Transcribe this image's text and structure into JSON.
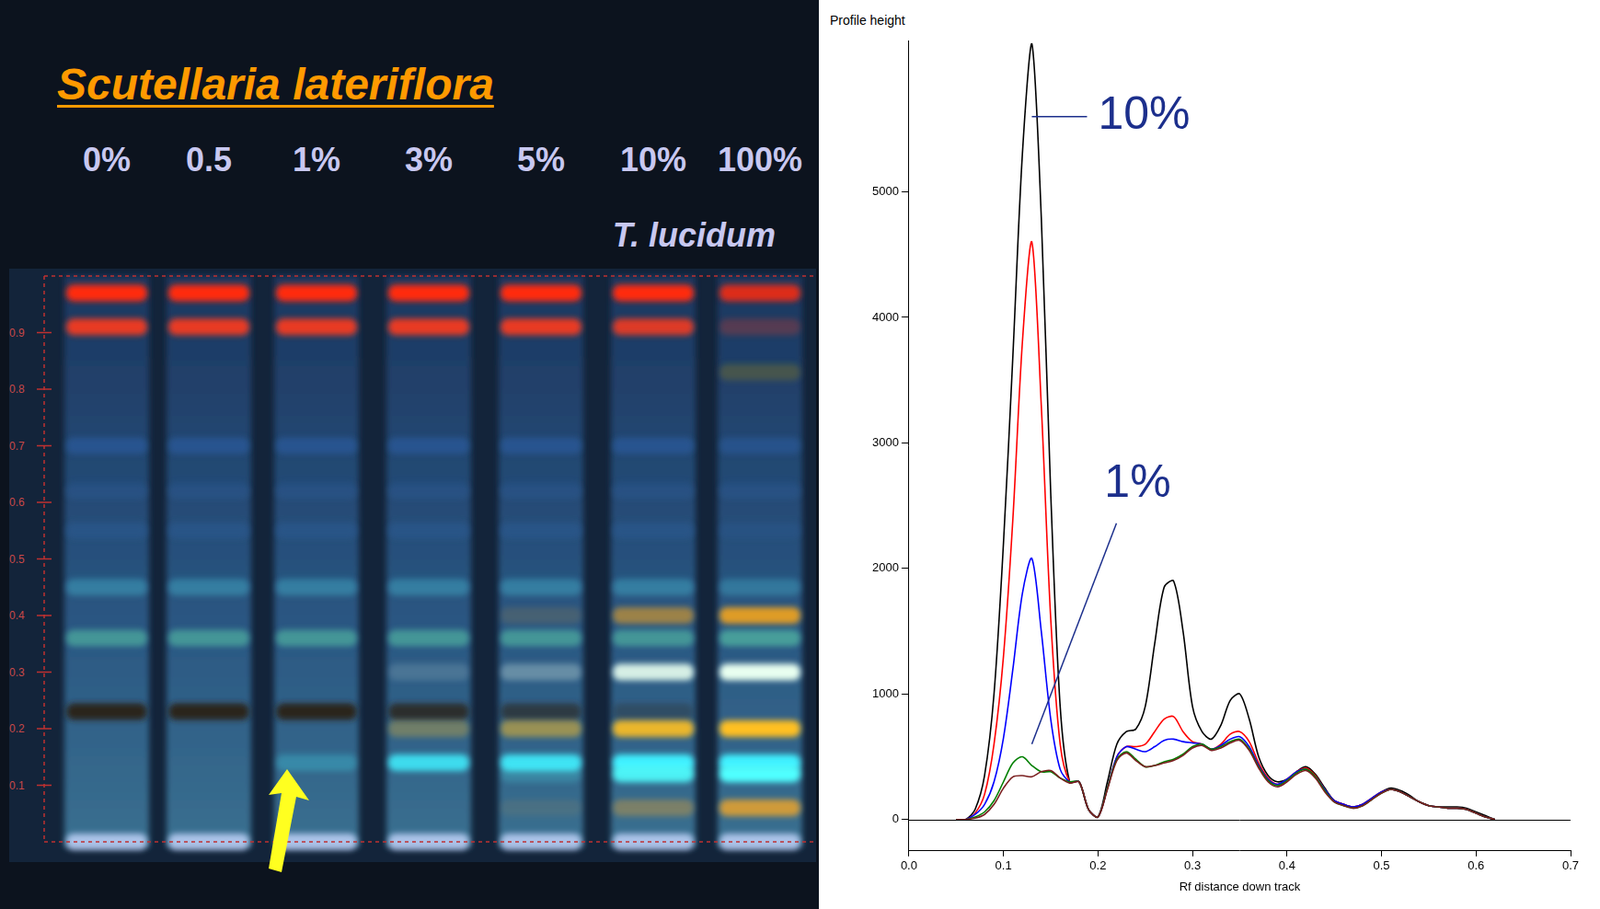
{
  "plate": {
    "title": "Scutellaria lateriflora",
    "lanes": [
      "0%",
      "0.5",
      "1%",
      "3%",
      "5%",
      "10%",
      "100%"
    ],
    "sublabel": "T. lucidum",
    "rf_ticks": [
      0.1,
      0.2,
      0.3,
      0.4,
      0.5,
      0.6,
      0.7,
      0.8,
      0.9
    ],
    "bands": [
      {
        "rf": 0.97,
        "color": "#ff2a10",
        "intensity": [
          1,
          1,
          1,
          1,
          1,
          1,
          0.85
        ]
      },
      {
        "rf": 0.91,
        "color": "#ff3a1e",
        "intensity": [
          0.9,
          0.9,
          0.9,
          0.9,
          0.9,
          0.85,
          0.25
        ]
      },
      {
        "rf": 0.83,
        "color": "#6a6a30",
        "intensity": [
          0,
          0,
          0,
          0,
          0,
          0,
          0.5
        ]
      },
      {
        "rf": 0.7,
        "color": "#2a5a9c",
        "intensity": [
          0.7,
          0.7,
          0.7,
          0.7,
          0.7,
          0.7,
          0.6
        ]
      },
      {
        "rf": 0.62,
        "color": "#2a5890",
        "intensity": [
          0.5,
          0.5,
          0.5,
          0.5,
          0.5,
          0.5,
          0.5
        ]
      },
      {
        "rf": 0.55,
        "color": "#2a5a90",
        "intensity": [
          0.6,
          0.6,
          0.6,
          0.6,
          0.6,
          0.6,
          0.4
        ]
      },
      {
        "rf": 0.45,
        "color": "#3a90b0",
        "intensity": [
          0.7,
          0.7,
          0.7,
          0.7,
          0.7,
          0.7,
          0.6
        ]
      },
      {
        "rf": 0.4,
        "color": "#e8a020",
        "intensity": [
          0,
          0,
          0,
          0,
          0.15,
          0.6,
          0.95
        ]
      },
      {
        "rf": 0.36,
        "color": "#50b0a0",
        "intensity": [
          0.7,
          0.7,
          0.7,
          0.7,
          0.7,
          0.7,
          0.8
        ]
      },
      {
        "rf": 0.3,
        "color": "#e8fff0",
        "intensity": [
          0,
          0,
          0,
          0.15,
          0.3,
          0.9,
          1
        ]
      },
      {
        "rf": 0.23,
        "color": "#2a2418",
        "intensity": [
          0.95,
          0.95,
          0.95,
          0.8,
          0.6,
          0.3,
          0
        ]
      },
      {
        "rf": 0.2,
        "color": "#ffc020",
        "intensity": [
          0,
          0,
          0,
          0.3,
          0.5,
          0.9,
          1
        ]
      },
      {
        "rf": 0.14,
        "color": "#40f0ff",
        "intensity": [
          0,
          0,
          0.25,
          0.85,
          0.9,
          1,
          1
        ]
      },
      {
        "rf": 0.12,
        "color": "#50ffff",
        "intensity": [
          0,
          0,
          0,
          0,
          0.2,
          0.9,
          1
        ]
      },
      {
        "rf": 0.06,
        "color": "#e0a030",
        "intensity": [
          0,
          0,
          0,
          0,
          0.1,
          0.4,
          0.9
        ]
      },
      {
        "rf": 0,
        "color": "#c8d8ff",
        "intensity": [
          0.8,
          0.8,
          0.8,
          0.8,
          0.8,
          0.8,
          0.8
        ]
      }
    ]
  },
  "chart_data": {
    "type": "line",
    "y_label": "Profile height",
    "x_label": "Rf distance down track",
    "x": [
      0.05,
      0.06,
      0.07,
      0.08,
      0.09,
      0.1,
      0.11,
      0.12,
      0.13,
      0.14,
      0.15,
      0.16,
      0.17,
      0.18,
      0.19,
      0.2,
      0.21,
      0.22,
      0.23,
      0.24,
      0.25,
      0.26,
      0.27,
      0.28,
      0.29,
      0.3,
      0.31,
      0.32,
      0.33,
      0.34,
      0.35,
      0.36,
      0.37,
      0.38,
      0.39,
      0.4,
      0.41,
      0.42,
      0.43,
      0.44,
      0.45,
      0.46,
      0.47,
      0.48,
      0.49,
      0.5,
      0.51,
      0.52,
      0.53,
      0.54,
      0.55,
      0.56,
      0.57,
      0.58,
      0.59,
      0.6,
      0.61,
      0.62
    ],
    "series": [
      {
        "color": "#7a1f1f",
        "values": [
          0,
          0,
          10,
          40,
          120,
          250,
          340,
          350,
          340,
          380,
          390,
          330,
          290,
          300,
          80,
          20,
          240,
          470,
          530,
          470,
          420,
          430,
          450,
          470,
          510,
          570,
          590,
          550,
          570,
          610,
          630,
          550,
          410,
          300,
          260,
          300,
          360,
          390,
          330,
          220,
          140,
          110,
          90,
          110,
          160,
          210,
          240,
          220,
          180,
          140,
          110,
          100,
          90,
          90,
          80,
          50,
          20,
          0
        ]
      },
      {
        "color": "#008000",
        "values": [
          0,
          0,
          20,
          60,
          150,
          300,
          450,
          500,
          430,
          380,
          380,
          330,
          300,
          300,
          80,
          20,
          250,
          480,
          540,
          480,
          420,
          430,
          460,
          480,
          520,
          580,
          600,
          560,
          580,
          620,
          640,
          560,
          420,
          310,
          270,
          310,
          370,
          400,
          340,
          230,
          140,
          110,
          90,
          110,
          160,
          210,
          240,
          220,
          180,
          140,
          110,
          100,
          90,
          90,
          80,
          50,
          20,
          0
        ]
      },
      {
        "color": "#0000ff",
        "values": [
          0,
          0,
          40,
          120,
          300,
          650,
          1200,
          1800,
          2080,
          1500,
          800,
          400,
          300,
          300,
          80,
          20,
          250,
          500,
          580,
          560,
          540,
          580,
          630,
          640,
          620,
          610,
          600,
          560,
          590,
          640,
          660,
          580,
          430,
          320,
          280,
          320,
          380,
          400,
          340,
          240,
          150,
          120,
          100,
          120,
          170,
          220,
          240,
          220,
          180,
          140,
          110,
          100,
          90,
          90,
          80,
          50,
          20,
          0
        ]
      },
      {
        "color": "#ff0000",
        "values": [
          0,
          0,
          50,
          200,
          600,
          1300,
          2400,
          3800,
          4600,
          3300,
          1600,
          600,
          300,
          300,
          80,
          20,
          250,
          500,
          580,
          580,
          600,
          700,
          800,
          820,
          700,
          620,
          600,
          560,
          600,
          680,
          700,
          620,
          450,
          330,
          280,
          320,
          380,
          410,
          350,
          240,
          150,
          120,
          100,
          120,
          170,
          220,
          240,
          220,
          180,
          140,
          110,
          100,
          90,
          90,
          80,
          50,
          20,
          0
        ]
      },
      {
        "color": "#000000",
        "values": [
          0,
          0,
          80,
          350,
          1000,
          2200,
          3700,
          5300,
          6180,
          4800,
          2600,
          900,
          300,
          300,
          80,
          20,
          300,
          600,
          700,
          720,
          900,
          1400,
          1850,
          1900,
          1500,
          900,
          700,
          640,
          750,
          950,
          1000,
          800,
          500,
          350,
          300,
          320,
          380,
          420,
          360,
          250,
          150,
          120,
          100,
          120,
          170,
          220,
          250,
          230,
          190,
          140,
          110,
          100,
          100,
          100,
          90,
          60,
          30,
          0
        ]
      }
    ],
    "xlim": [
      0,
      0.7
    ],
    "xticks": [
      {
        "value": 0,
        "label": "0.0"
      },
      0.1,
      0.2,
      0.3,
      0.4,
      0.5,
      0.6,
      0.7
    ],
    "ylim": [
      -250,
      6200
    ],
    "yticks": [
      0,
      1000,
      2000,
      3000,
      4000,
      5000
    ],
    "grid": false,
    "annotations": [
      {
        "text": "10%",
        "x": 0.13,
        "y": 5600
      },
      {
        "text": "1%",
        "x": 0.13,
        "y": 600
      }
    ]
  }
}
